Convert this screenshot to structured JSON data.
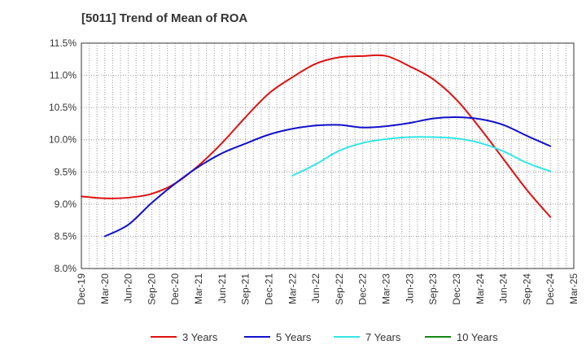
{
  "chart_data": {
    "type": "line",
    "title": "[5011]  Trend of Mean of ROA",
    "xlabel": "",
    "ylabel": "",
    "x_labels": [
      "Dec-19",
      "Mar-20",
      "Jun-20",
      "Sep-20",
      "Dec-20",
      "Mar-21",
      "Jun-21",
      "Sep-21",
      "Dec-21",
      "Mar-22",
      "Jun-22",
      "Sep-22",
      "Dec-22",
      "Mar-23",
      "Jun-23",
      "Sep-23",
      "Dec-23",
      "Mar-24",
      "Jun-24",
      "Sep-24",
      "Dec-24",
      "Mar-25"
    ],
    "y_ticks": [
      "11.5%",
      "11.0%",
      "10.5%",
      "10.0%",
      "9.5%",
      "9.0%",
      "8.5%",
      "8.0%"
    ],
    "ylim": [
      8.0,
      11.5
    ],
    "grid": true,
    "legend_position": "bottom",
    "series": [
      {
        "name": "3 Years",
        "color": "#dd1111",
        "values": [
          9.12,
          9.09,
          9.1,
          9.16,
          9.32,
          9.6,
          9.95,
          10.35,
          10.72,
          10.97,
          11.18,
          11.28,
          11.3,
          11.3,
          11.14,
          10.94,
          10.62,
          10.18,
          9.7,
          9.22,
          8.8,
          null
        ]
      },
      {
        "name": "5 Years",
        "color": "#1111cc",
        "values": [
          null,
          8.5,
          8.68,
          9.02,
          9.32,
          9.58,
          9.79,
          9.94,
          10.08,
          10.17,
          10.22,
          10.23,
          10.19,
          10.21,
          10.26,
          10.33,
          10.35,
          10.32,
          10.23,
          10.06,
          9.9,
          null
        ]
      },
      {
        "name": "7 Years",
        "color": "#33e6e6",
        "values": [
          null,
          null,
          null,
          null,
          null,
          null,
          null,
          null,
          null,
          9.44,
          9.62,
          9.83,
          9.95,
          10.01,
          10.04,
          10.04,
          10.02,
          9.95,
          9.82,
          9.64,
          9.51,
          null
        ]
      },
      {
        "name": "10 Years",
        "color": "#118811",
        "values": [
          null,
          null,
          null,
          null,
          null,
          null,
          null,
          null,
          null,
          null,
          null,
          null,
          null,
          null,
          null,
          null,
          null,
          null,
          null,
          null,
          null,
          null
        ]
      }
    ]
  }
}
